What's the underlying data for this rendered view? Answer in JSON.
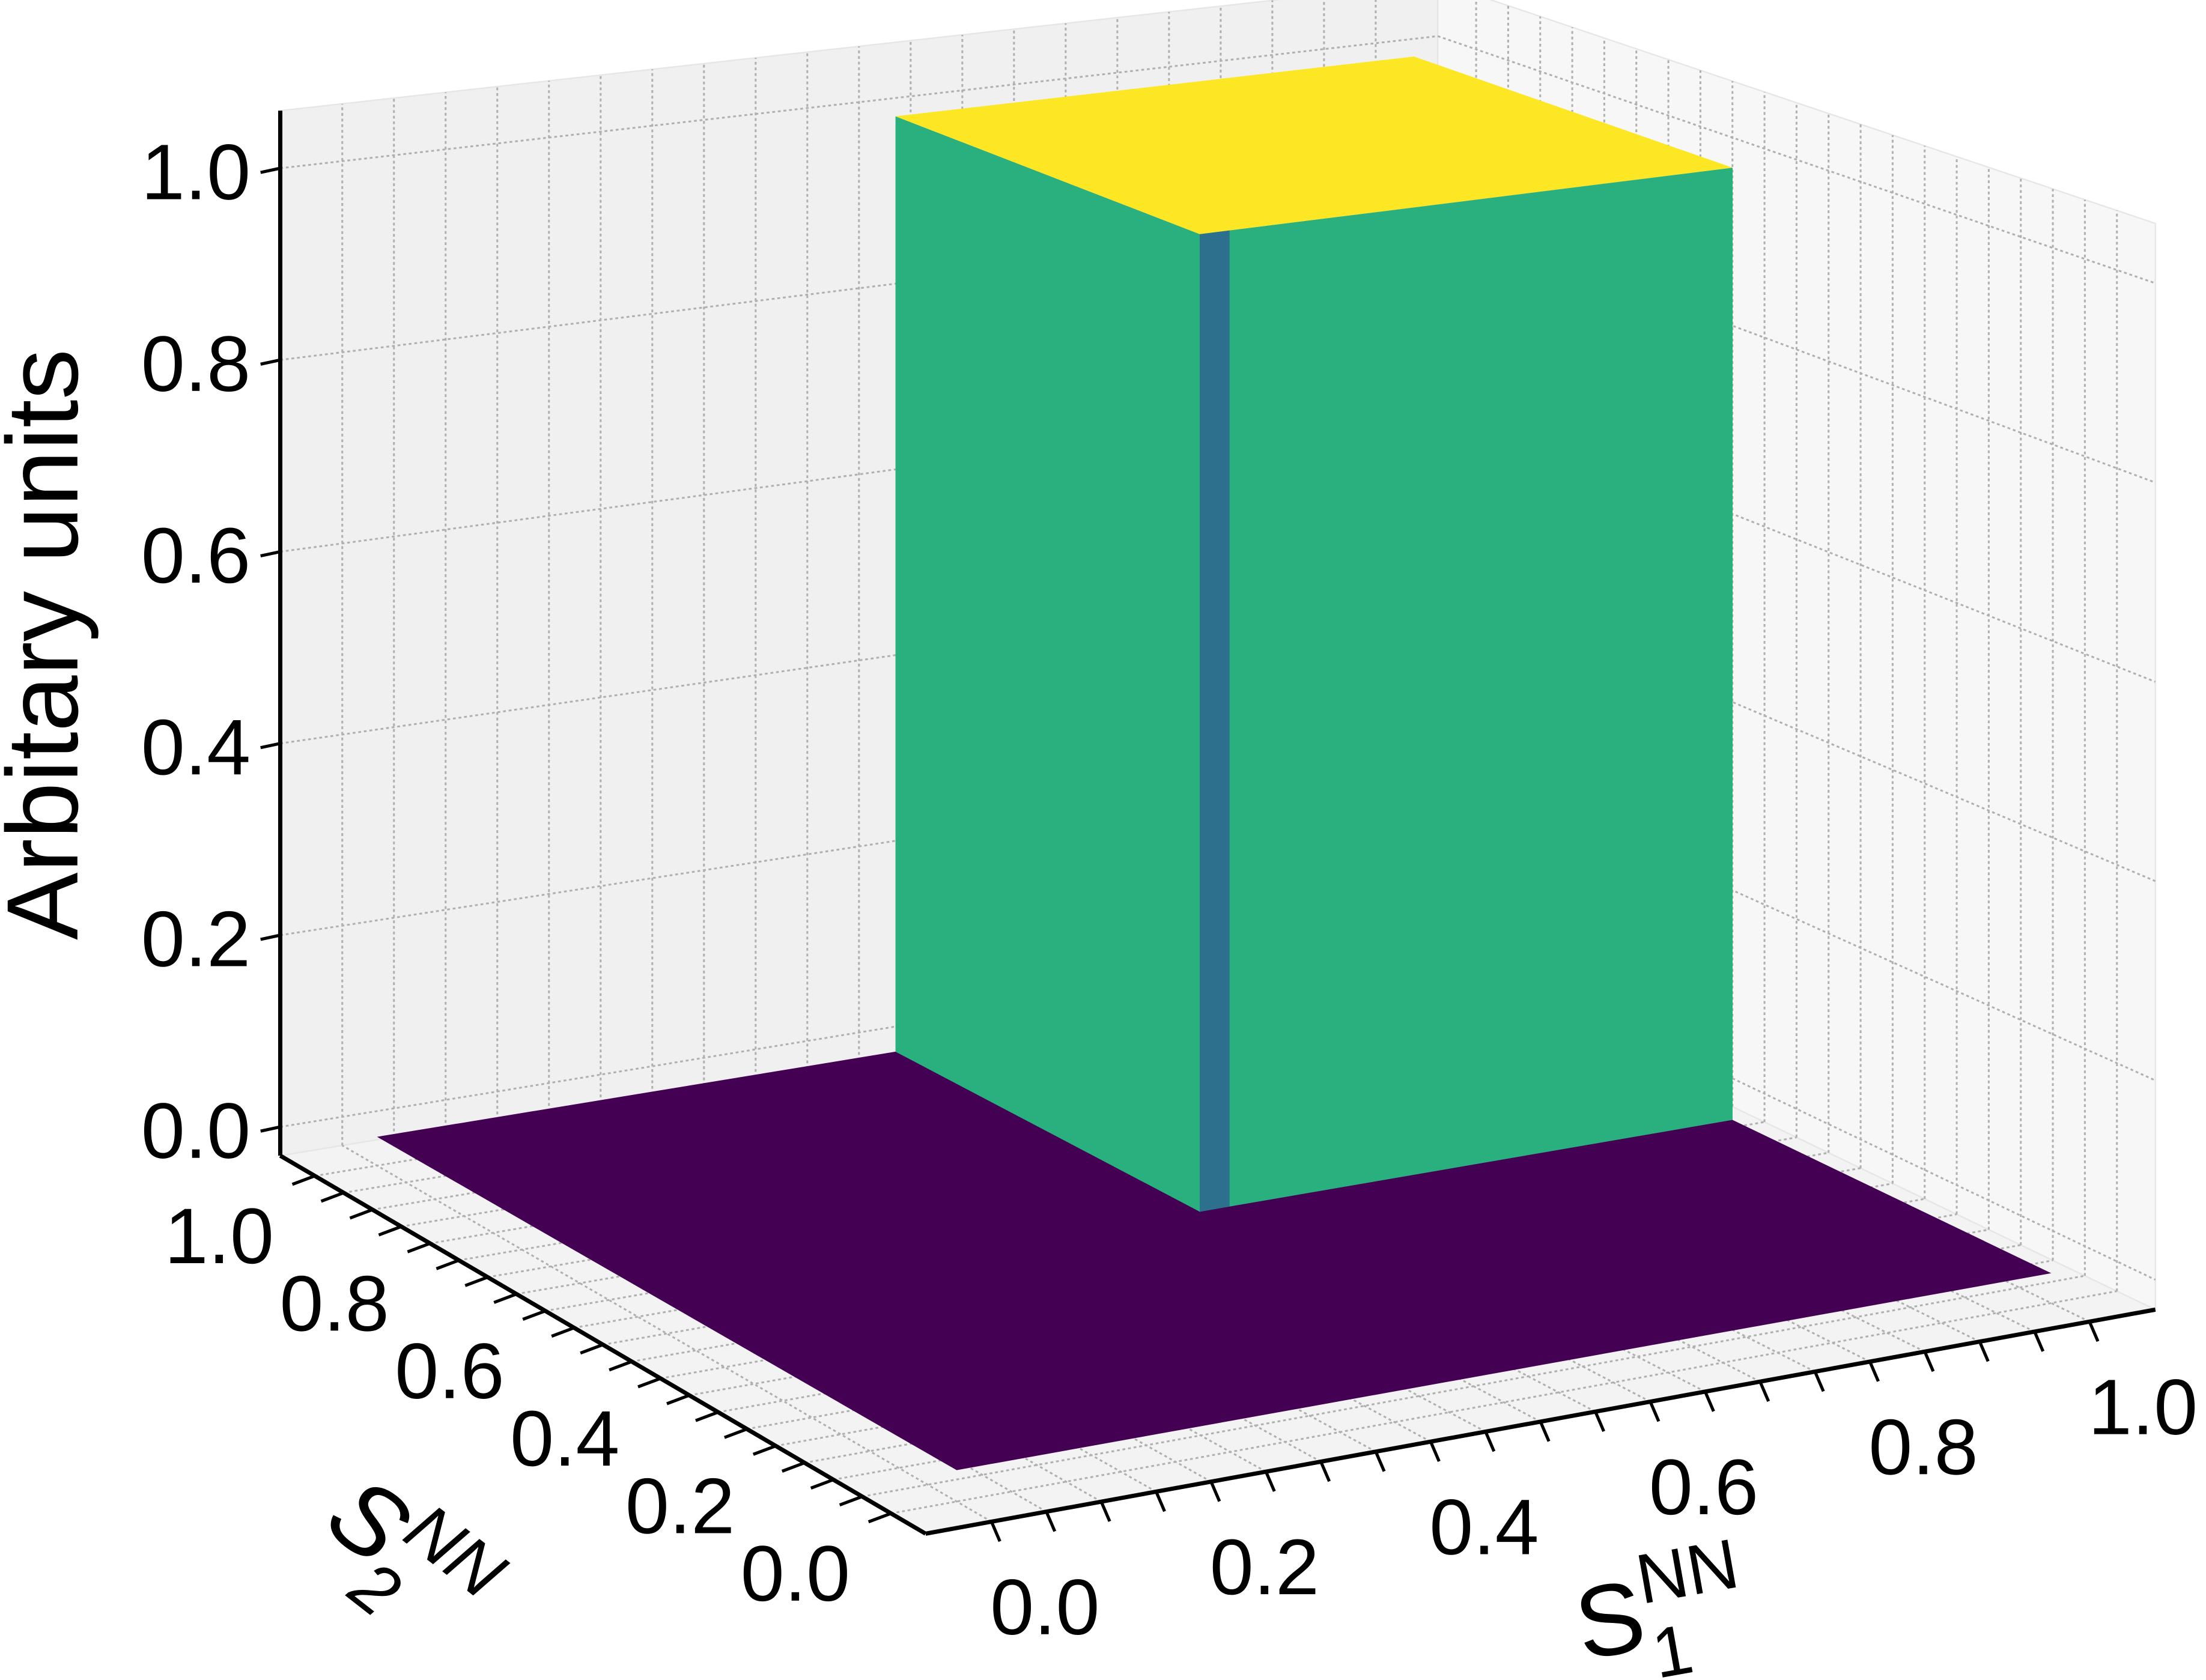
{
  "chart_data": {
    "type": "surface",
    "title": "",
    "xlabel": {
      "base": "S",
      "sub": "1",
      "sup": "NN"
    },
    "ylabel": {
      "base": "S",
      "sub": "2",
      "sup": "NN"
    },
    "zlabel": "Arbitary units",
    "xlim": [
      0,
      1
    ],
    "ylim": [
      0,
      1
    ],
    "zlim": [
      0,
      1
    ],
    "xticks": [
      "0.0",
      "0.2",
      "0.4",
      "0.6",
      "0.8",
      "1.0"
    ],
    "yticks": [
      "0.0",
      "0.2",
      "0.4",
      "0.6",
      "0.8",
      "1.0"
    ],
    "zticks": [
      "0.0",
      "0.2",
      "0.4",
      "0.6",
      "0.8",
      "1.0"
    ],
    "grid": true,
    "colormap": "viridis",
    "surface": {
      "description_rule": "z = 1 where S1 >= threshold and S2 >= threshold, else 0",
      "threshold": 0.5,
      "low_value": 0,
      "high_value": 1
    },
    "colors": {
      "low": "#440154",
      "high": "#fde725",
      "wall": "#2ab07f",
      "wall_edge": "#2d708e",
      "pane_left": "#f0f0f0",
      "pane_right": "#f7f7f7",
      "pane_floor": "#f3f3f3",
      "grid": "#b0b0b0"
    }
  }
}
